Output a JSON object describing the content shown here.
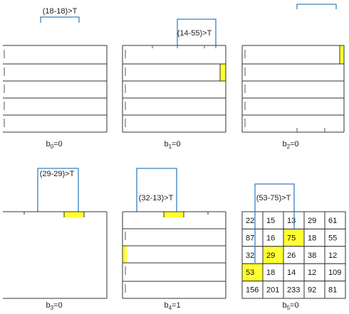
{
  "panels": [
    {
      "caption": "b",
      "sub": "0",
      "value": "=0",
      "comparison": "(18-18)>T"
    },
    {
      "caption": "b",
      "sub": "1",
      "value": "=0",
      "comparison": "(14-55)>T"
    },
    {
      "caption": "b",
      "sub": "2",
      "value": "=0",
      "comparison": ""
    },
    {
      "caption": "b",
      "sub": "3",
      "value": "=0",
      "comparison": "(29-29)>T"
    },
    {
      "caption": "b",
      "sub": "4",
      "value": "=1",
      "comparison": "(32-13)>T"
    },
    {
      "caption": "b",
      "sub": "5",
      "value": "=0",
      "comparison": "(53-75)>T"
    }
  ],
  "grid": [
    [
      "22",
      "15",
      "13",
      "29",
      "61"
    ],
    [
      "87",
      "16",
      "75",
      "18",
      "55"
    ],
    [
      "32",
      "29",
      "26",
      "38",
      "12"
    ],
    [
      "53",
      "18",
      "14",
      "12",
      "109"
    ],
    [
      "156",
      "201",
      "233",
      "92",
      "81"
    ]
  ],
  "highlight_cells": [
    [
      1,
      2
    ],
    [
      2,
      1
    ],
    [
      3,
      0
    ]
  ],
  "colors": {
    "highlight": "#ffff33",
    "grid": "#333333",
    "connector": "#3a7fbf"
  }
}
